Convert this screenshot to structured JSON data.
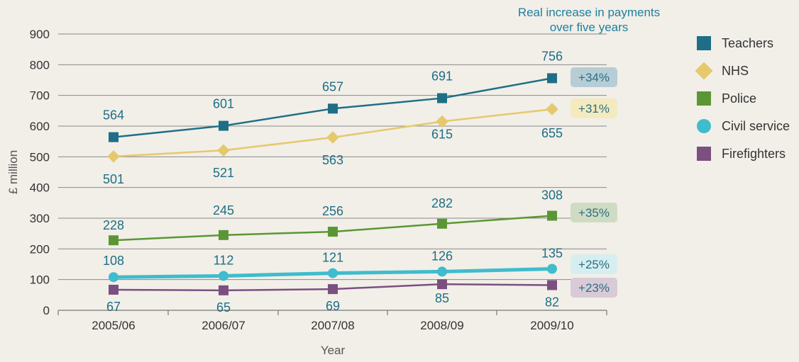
{
  "chart_data": {
    "type": "line",
    "title": "",
    "note": [
      "Real increase in payments",
      "over five years"
    ],
    "xlabel": "Year",
    "ylabel": "£ million",
    "categories": [
      "2005/06",
      "2006/07",
      "2007/08",
      "2008/09",
      "2009/10"
    ],
    "ylim": [
      0,
      900
    ],
    "yticks": [
      "0",
      "100",
      "200",
      "300",
      "400",
      "500",
      "600",
      "700",
      "800",
      "900"
    ],
    "grid": true,
    "legend_position": "right",
    "series": [
      {
        "name": "Teachers",
        "values": [
          564,
          601,
          657,
          691,
          756
        ],
        "color": "#1f6e86",
        "marker": "square",
        "increase": "+34%",
        "badge_color": "#b7cdd6"
      },
      {
        "name": "NHS",
        "values": [
          501,
          521,
          563,
          615,
          655
        ],
        "color": "#e6c86d",
        "marker": "diamond",
        "increase": "+31%",
        "badge_color": "#f3ebbf"
      },
      {
        "name": "Police",
        "values": [
          228,
          245,
          256,
          282,
          308
        ],
        "color": "#5b9634",
        "marker": "square",
        "increase": "+35%",
        "badge_color": "#cfdcc3"
      },
      {
        "name": "Civil service",
        "values": [
          108,
          112,
          121,
          126,
          135
        ],
        "color": "#3fbccd",
        "marker": "circle",
        "increase": "+25%",
        "badge_color": "#d6eef0"
      },
      {
        "name": "Firefighters",
        "values": [
          67,
          65,
          69,
          85,
          82
        ],
        "color": "#7b4f80",
        "marker": "square",
        "increase": "+23%",
        "badge_color": "#d9cad7"
      }
    ]
  }
}
